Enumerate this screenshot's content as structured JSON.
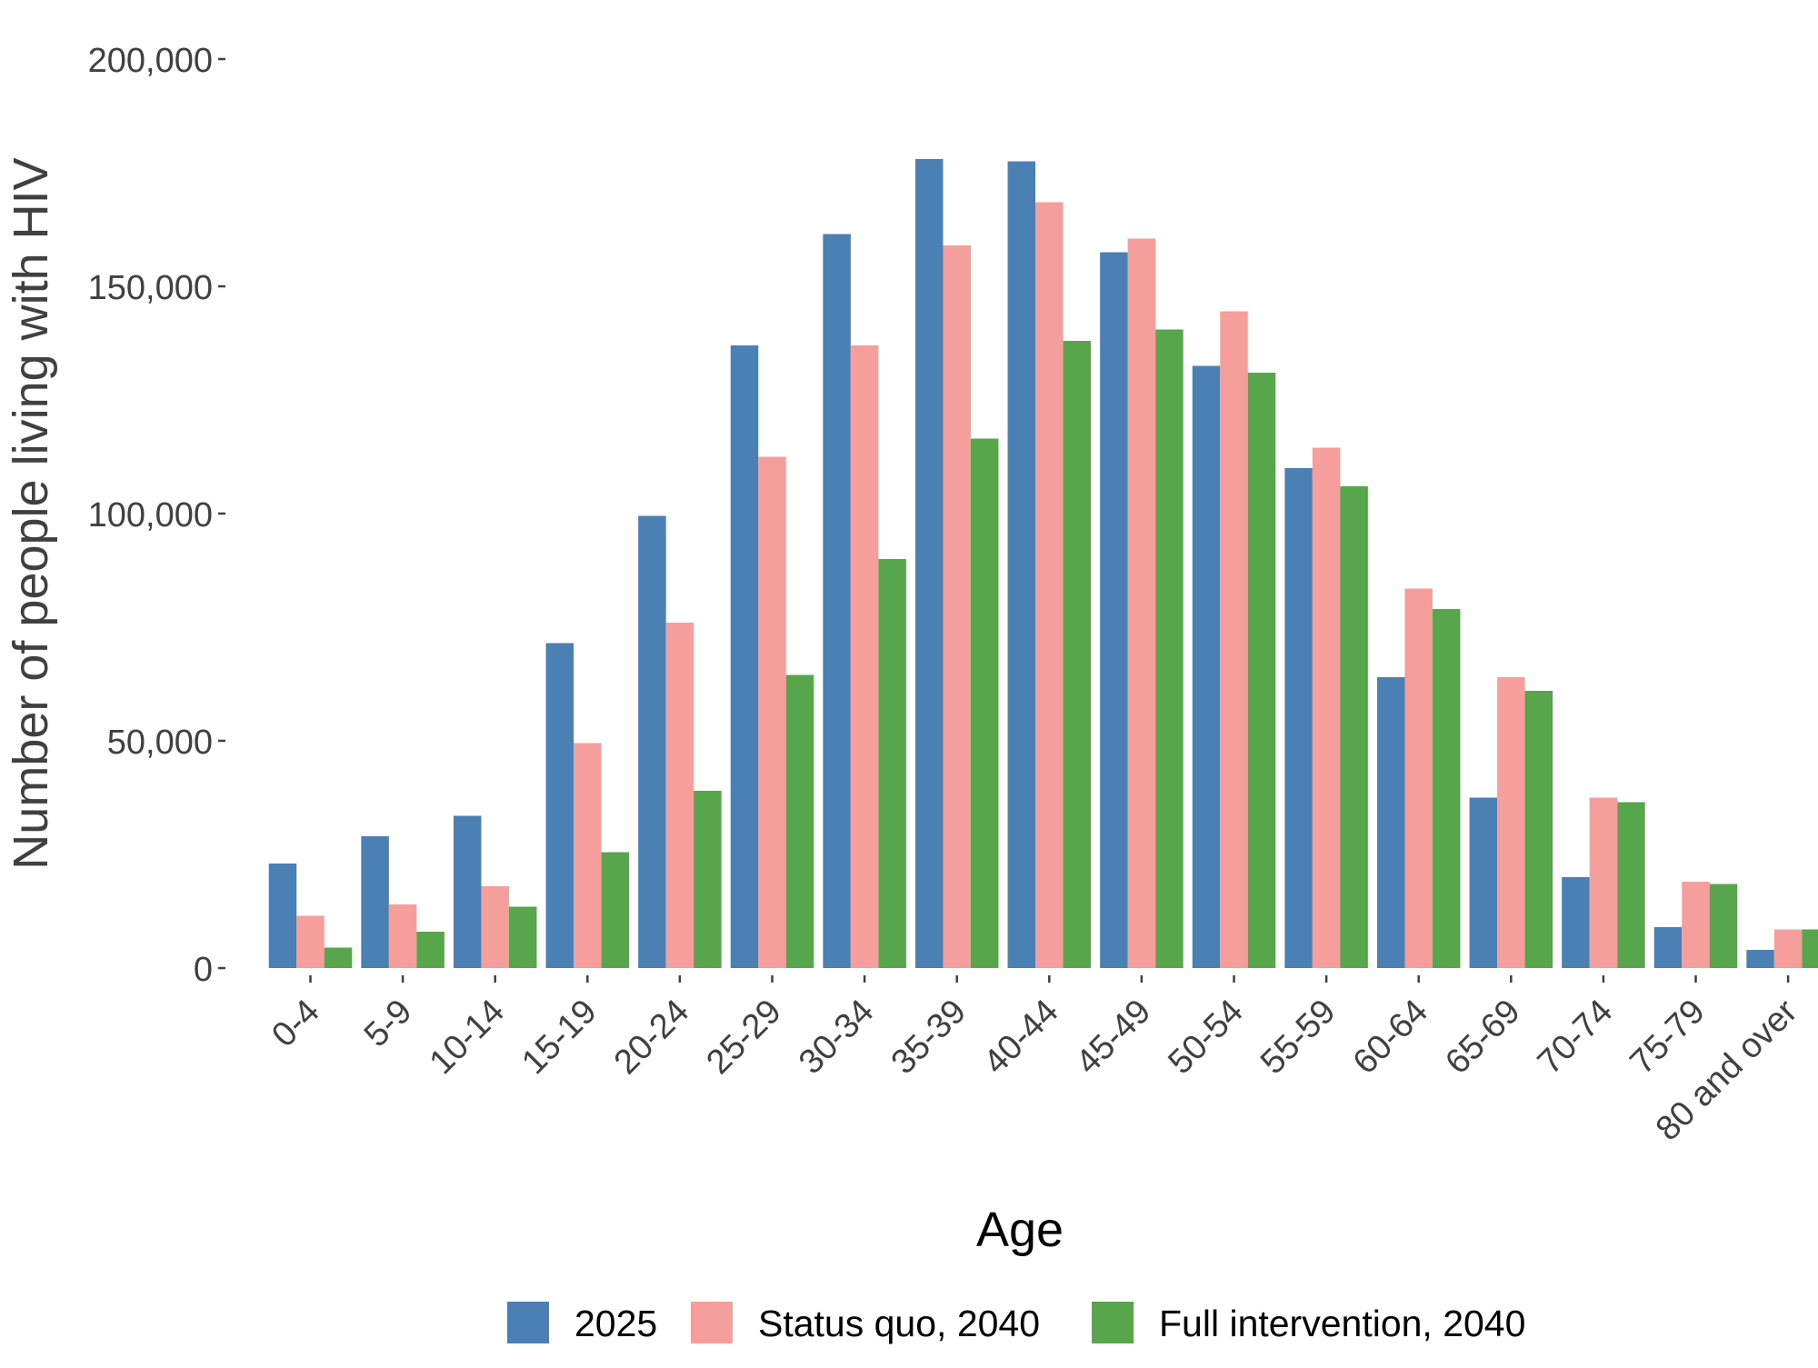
{
  "chart_data": {
    "type": "bar",
    "title": "",
    "xlabel": "Age",
    "ylabel": "Number of people living with HIV",
    "ylim": [
      0,
      200000
    ],
    "yticks": [
      0,
      50000,
      100000,
      150000,
      200000
    ],
    "ytick_labels": [
      "0",
      "50,000",
      "100,000",
      "150,000",
      "200,000"
    ],
    "grid": false,
    "legend_position": "bottom",
    "categories": [
      "0-4",
      "5-9",
      "10-14",
      "15-19",
      "20-24",
      "25-29",
      "30-34",
      "35-39",
      "40-44",
      "45-49",
      "50-54",
      "55-59",
      "60-64",
      "65-69",
      "70-74",
      "75-79",
      "80 and over"
    ],
    "series": [
      {
        "name": "2025",
        "color": "#4A80B4",
        "values": [
          23000,
          29000,
          33500,
          71500,
          99500,
          137000,
          161500,
          178000,
          177500,
          157500,
          132500,
          110000,
          64000,
          37500,
          20000,
          9000,
          4000
        ]
      },
      {
        "name": "Status quo, 2040",
        "color": "#F59E9C",
        "values": [
          11500,
          14000,
          18000,
          49500,
          76000,
          112500,
          137000,
          159000,
          168500,
          160500,
          144500,
          114500,
          83500,
          64000,
          37500,
          19000,
          8500
        ]
      },
      {
        "name": "Full intervention, 2040",
        "color": "#57A64B",
        "values": [
          4500,
          8000,
          13500,
          25500,
          39000,
          64500,
          90000,
          116500,
          138000,
          140500,
          131000,
          106000,
          79000,
          61000,
          36500,
          18500,
          8500
        ]
      }
    ]
  }
}
